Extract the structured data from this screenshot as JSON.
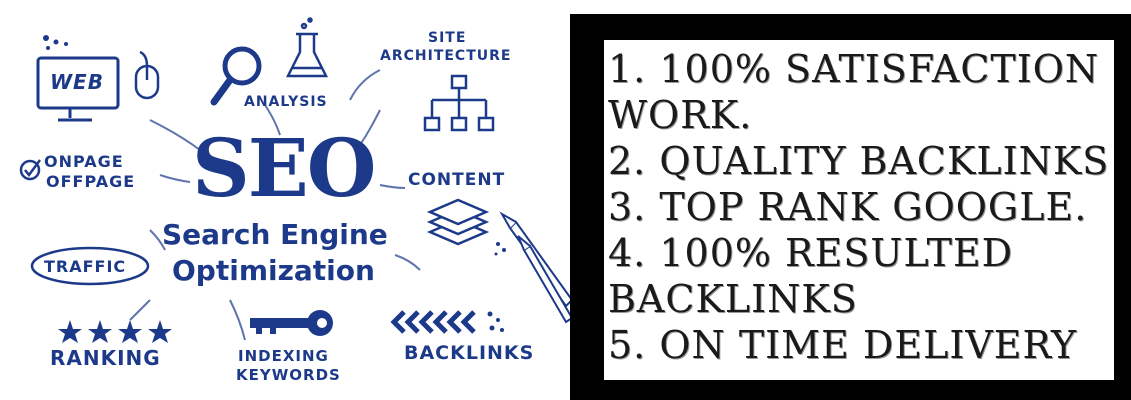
{
  "cloud": {
    "web": "WEB",
    "analysis": "ANALYSIS",
    "site_architecture_line1": "SITE",
    "site_architecture_line2": "ARCHITECTURE",
    "onpage": "ONPAGE",
    "offpage": "OFFPAGE",
    "seo": "SEO",
    "content": "CONTENT",
    "search_engine": "Search Engine",
    "optimization": "Optimization",
    "traffic": "TRAFFIC",
    "ranking": "RANKING",
    "indexing": "INDEXING",
    "keywords": "KEYWORDS",
    "backlinks": "BACKLINKS",
    "ink_color": "#1d3a8a"
  },
  "features": [
    "1. 100% SATISFACTION",
    "WORK.",
    "2. QUALITY BACKLINKS",
    "3. TOP RANK GOOGLE.",
    "4. 100% RESULTED",
    "BACKLINKS",
    "5. ON TIME DELIVERY"
  ]
}
